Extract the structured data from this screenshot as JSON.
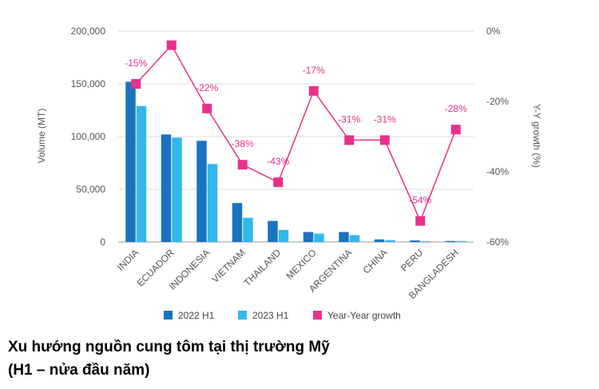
{
  "caption": {
    "line1": "Xu hướng nguồn cung tôm tại thị trường Mỹ",
    "line2": "(H1 – nửa đầu năm)"
  },
  "chart_data": {
    "type": "bar",
    "categories": [
      "INDIA",
      "ECUADOR",
      "INDONESIA",
      "VIETNAM",
      "THAILAND",
      "MEXICO",
      "ARGENTINA",
      "CHINA",
      "PERU",
      "BANGLADESH"
    ],
    "series": [
      {
        "name": "2022 H1",
        "type": "bar",
        "axis": "left",
        "color": "#1a73c1",
        "values": [
          152000,
          102000,
          96000,
          37000,
          20000,
          9500,
          9500,
          2500,
          1500,
          1000
        ]
      },
      {
        "name": "2023 H1",
        "type": "bar",
        "axis": "left",
        "color": "#33b8ec",
        "values": [
          129000,
          99000,
          74000,
          23000,
          11500,
          8000,
          6500,
          1800,
          800,
          900
        ]
      },
      {
        "name": "Year-Year growth",
        "type": "line",
        "axis": "right",
        "color": "#e8318a",
        "values": [
          -15,
          -4,
          -22,
          -38,
          -43,
          -17,
          -31,
          -31,
          -54,
          -28
        ],
        "labels": [
          "-15%",
          "",
          "-22%",
          "-38%",
          "-43%",
          "-17%",
          "-31%",
          "-31%",
          "-54%",
          "-28%"
        ]
      }
    ],
    "ylabel": "Volume (MT)",
    "ylim": [
      0,
      200000
    ],
    "yticks": [
      "0",
      "50,000",
      "100,000",
      "150,000",
      "200,000"
    ],
    "y2label": "Y-Y growth (%)",
    "y2lim": [
      -60,
      0
    ],
    "y2ticks": [
      "-60%",
      "-40%",
      "-20%",
      "0%"
    ],
    "grid": true,
    "legend": "bottom"
  }
}
